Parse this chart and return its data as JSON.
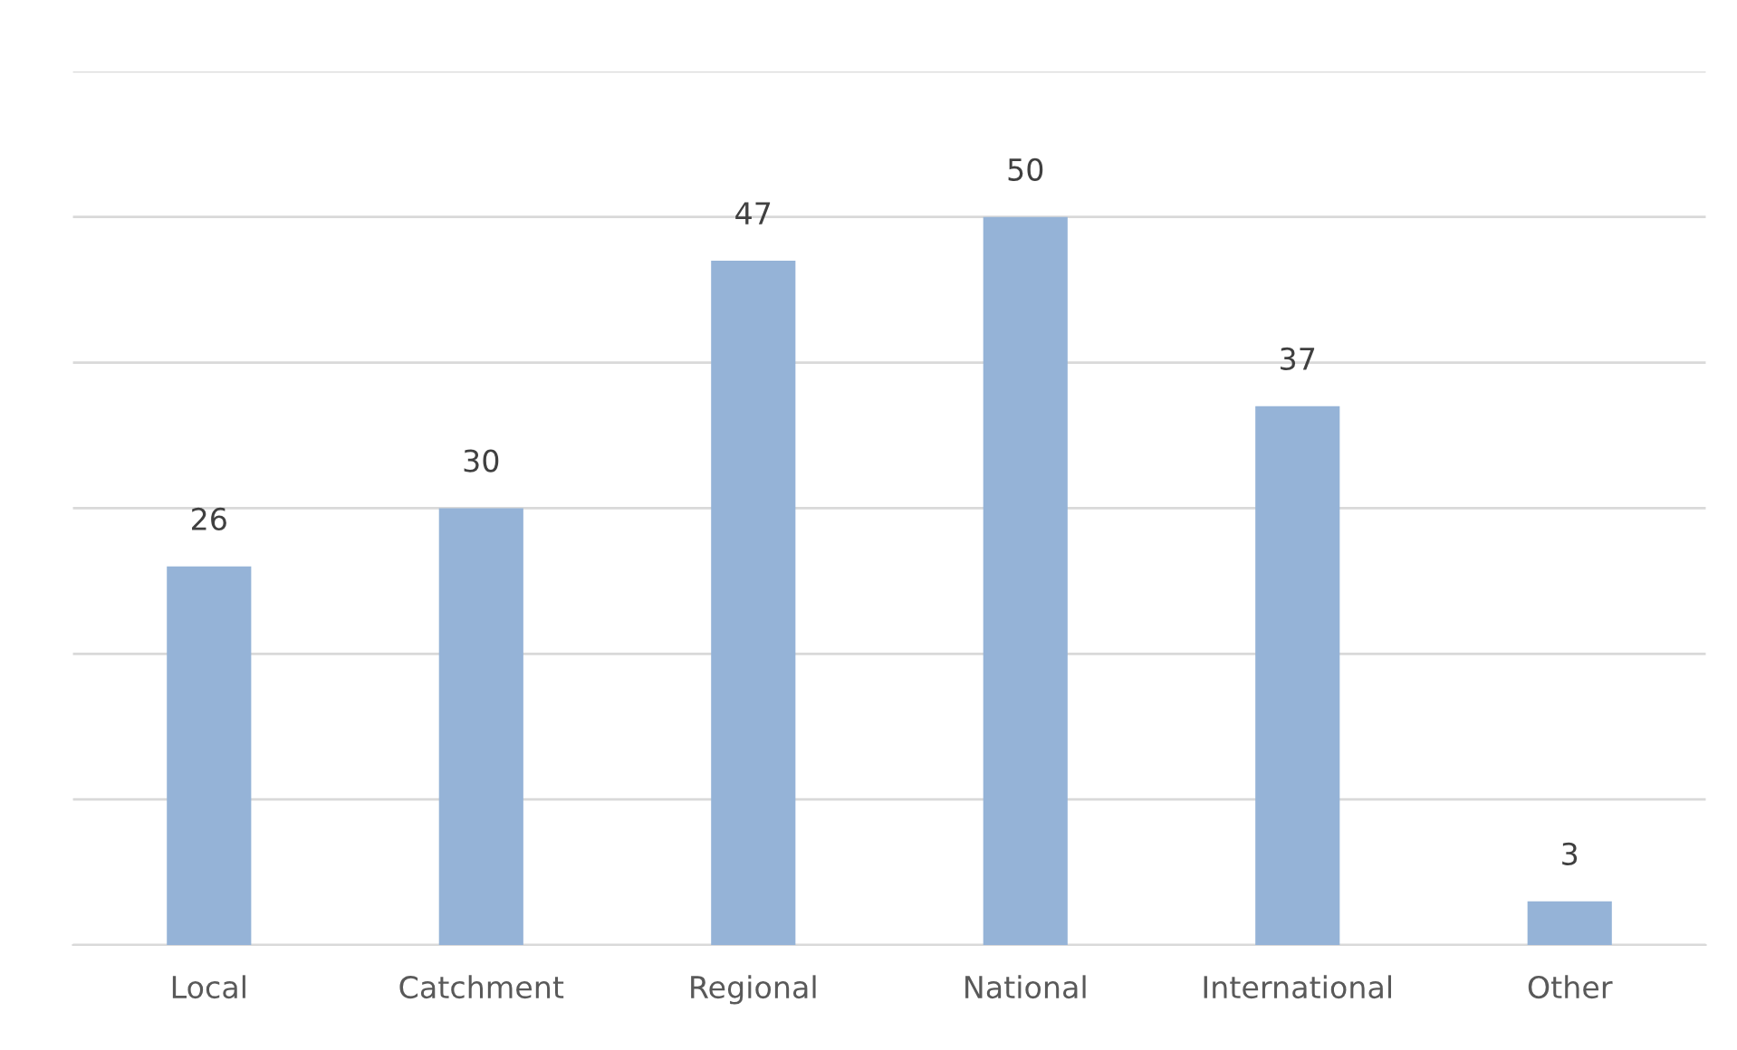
{
  "chart_data": {
    "type": "bar",
    "categories": [
      "Local",
      "Catchment",
      "Regional",
      "National",
      "International",
      "Other"
    ],
    "values": [
      26,
      30,
      47,
      50,
      37,
      3
    ],
    "color": "#95b3d7",
    "ylim": [
      0,
      60
    ],
    "yticks": [
      0,
      10,
      20,
      30,
      40,
      50,
      60
    ],
    "tick_labels": "x",
    "grid": "y",
    "data_labels": true
  }
}
